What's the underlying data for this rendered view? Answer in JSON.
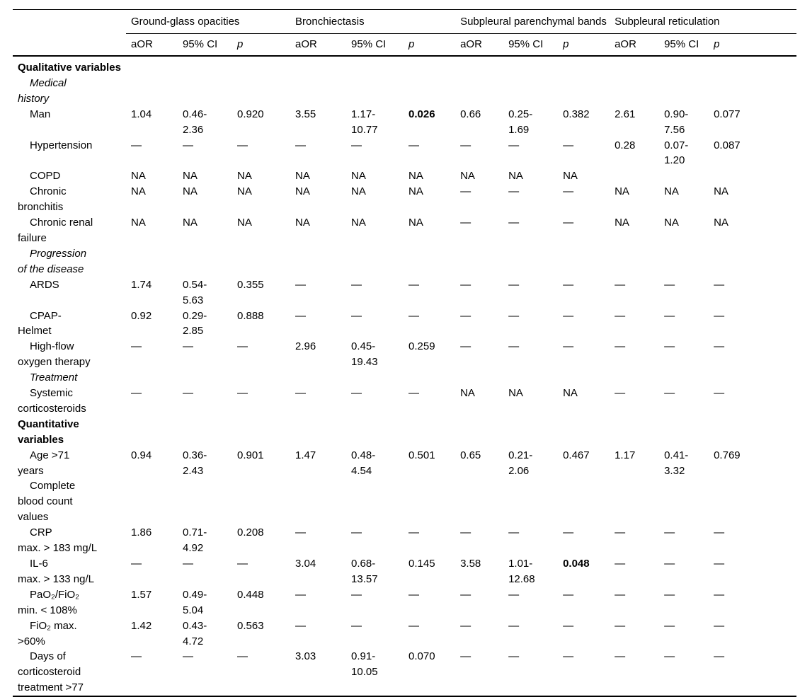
{
  "table": {
    "groups": [
      {
        "label": "Ground-glass opacities"
      },
      {
        "label": "Bronchiectasis"
      },
      {
        "label": "Subpleural parenchymal bands"
      },
      {
        "label": "Subpleural reticulation"
      }
    ],
    "subheaders": {
      "aor": "aOR",
      "ci": "95% CI",
      "p": "p"
    },
    "rows": [
      {
        "type": "section",
        "label": "Qualitative variables"
      },
      {
        "type": "subsection",
        "label": "Medical\nhistory"
      },
      {
        "type": "variable",
        "label": "Man",
        "cells": [
          "1.04",
          "0.46-\n2.36",
          "0.920",
          "3.55",
          "1.17-\n10.77",
          "0.026",
          "0.66",
          "0.25-\n1.69",
          "0.382",
          "2.61",
          "0.90-\n7.56",
          "0.077"
        ],
        "bold": [
          5
        ]
      },
      {
        "type": "variable",
        "label": "Hypertension",
        "cells": [
          "—",
          "—",
          "—",
          "—",
          "—",
          "—",
          "—",
          "—",
          "—",
          "0.28",
          "0.07-\n1.20",
          "0.087"
        ]
      },
      {
        "type": "variable",
        "label": "COPD",
        "cells": [
          "NA",
          "NA",
          "NA",
          "NA",
          "NA",
          "NA",
          "NA",
          "NA",
          "NA",
          "",
          "",
          ""
        ]
      },
      {
        "type": "variable",
        "label": "Chronic\nbronchitis",
        "cells": [
          "NA",
          "NA",
          "NA",
          "NA",
          "NA",
          "NA",
          "—",
          "—",
          "—",
          "NA",
          "NA",
          "NA"
        ]
      },
      {
        "type": "variable",
        "label": "Chronic renal\nfailure",
        "cells": [
          "NA",
          "NA",
          "NA",
          "NA",
          "NA",
          "NA",
          "—",
          "—",
          "—",
          "NA",
          "NA",
          "NA"
        ]
      },
      {
        "type": "subsection",
        "label": "Progression\nof the disease"
      },
      {
        "type": "variable",
        "label": "ARDS",
        "cells": [
          "1.74",
          "0.54-\n5.63",
          "0.355",
          "—",
          "—",
          "—",
          "—",
          "—",
          "—",
          "—",
          "—",
          "—"
        ]
      },
      {
        "type": "variable",
        "label": "CPAP-\nHelmet",
        "cells": [
          "0.92",
          "0.29-\n2.85",
          "0.888",
          "—",
          "—",
          "—",
          "—",
          "—",
          "—",
          "—",
          "—",
          "—"
        ]
      },
      {
        "type": "variable",
        "label": "High-flow\noxygen therapy",
        "cells": [
          "—",
          "—",
          "—",
          "2.96",
          "0.45-\n19.43",
          "0.259",
          "—",
          "—",
          "—",
          "—",
          "—",
          "—"
        ]
      },
      {
        "type": "subsection",
        "label": "Treatment"
      },
      {
        "type": "variable",
        "label": "Systemic\ncorticosteroids",
        "cells": [
          "—",
          "—",
          "—",
          "—",
          "—",
          "—",
          "NA",
          "NA",
          "NA",
          "—",
          "—",
          "—"
        ]
      },
      {
        "type": "section",
        "label": "Quantitative variables"
      },
      {
        "type": "variable",
        "label": "Age >71\nyears",
        "cells": [
          "0.94",
          "0.36-\n2.43",
          "0.901",
          "1.47",
          "0.48-\n4.54",
          "0.501",
          "0.65",
          "0.21-\n2.06",
          "0.467",
          "1.17",
          "0.41-\n3.32",
          "0.769"
        ]
      },
      {
        "type": "variable",
        "label": "Complete\nblood count\nvalues",
        "cells": [
          "",
          "",
          "",
          "",
          "",
          "",
          "",
          "",
          "",
          "",
          "",
          ""
        ]
      },
      {
        "type": "variable",
        "label": "CRP\nmax. > 183 mg/L",
        "cells": [
          "1.86",
          "0.71-\n4.92",
          "0.208",
          "—",
          "—",
          "—",
          "—",
          "—",
          "—",
          "—",
          "—",
          "—"
        ]
      },
      {
        "type": "variable",
        "label": "IL-6\nmax. > 133 ng/L",
        "cells": [
          "—",
          "—",
          "—",
          "3.04",
          "0.68-\n13.57",
          "0.145",
          "3.58",
          "1.01-\n12.68",
          "0.048",
          "—",
          "—",
          "—"
        ],
        "bold": [
          8
        ]
      },
      {
        "type": "variable",
        "label": "PaO₂/FiO₂\nmin. < 108%",
        "cells": [
          "1.57",
          "0.49-\n5.04",
          "0.448",
          "—",
          "—",
          "—",
          "—",
          "—",
          "—",
          "—",
          "—",
          "—"
        ]
      },
      {
        "type": "variable",
        "label": "FiO₂ max.\n>60%",
        "cells": [
          "1.42",
          "0.43-\n4.72",
          "0.563",
          "—",
          "—",
          "—",
          "—",
          "—",
          "—",
          "—",
          "—",
          "—"
        ]
      },
      {
        "type": "variable",
        "label": "Days of\ncorticosteroid\ntreatment >77",
        "cells": [
          "—",
          "—",
          "—",
          "3.03",
          "0.91-\n10.05",
          "0.070",
          "—",
          "—",
          "—",
          "—",
          "—",
          "—"
        ]
      }
    ]
  }
}
